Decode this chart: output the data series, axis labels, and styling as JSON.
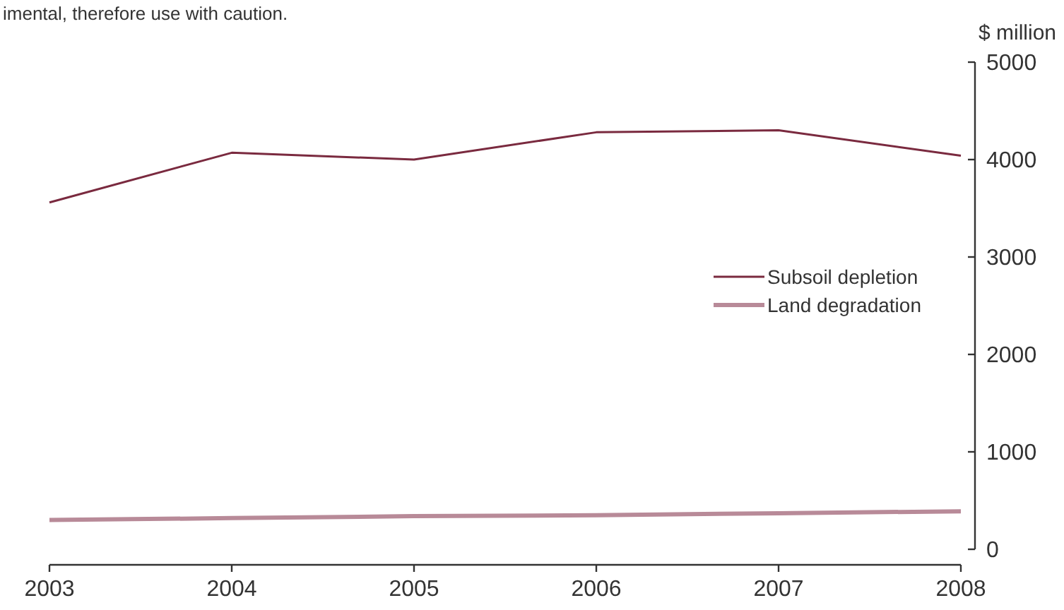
{
  "chart_data": {
    "type": "line",
    "ylabel": "$ million",
    "annotations": [
      "imental, therefore use with caution."
    ],
    "x": [
      2003,
      2004,
      2005,
      2006,
      2007,
      2008
    ],
    "xlim": [
      2003,
      2008
    ],
    "xticks": [
      2003,
      2004,
      2005,
      2006,
      2007,
      2008
    ],
    "ylim": [
      0,
      5000
    ],
    "yticks": [
      0,
      1000,
      2000,
      3000,
      4000,
      5000
    ],
    "grid": false,
    "legend": "right",
    "marker": "none",
    "line_style": "solid",
    "series": [
      {
        "name": "Subsoil depletion",
        "color": "#7a2a3f",
        "values": [
          3560,
          4070,
          4000,
          4280,
          4300,
          4040
        ]
      },
      {
        "name": "Land degradation",
        "color": "#b88a98",
        "values": [
          300,
          320,
          340,
          350,
          370,
          390
        ]
      }
    ]
  }
}
